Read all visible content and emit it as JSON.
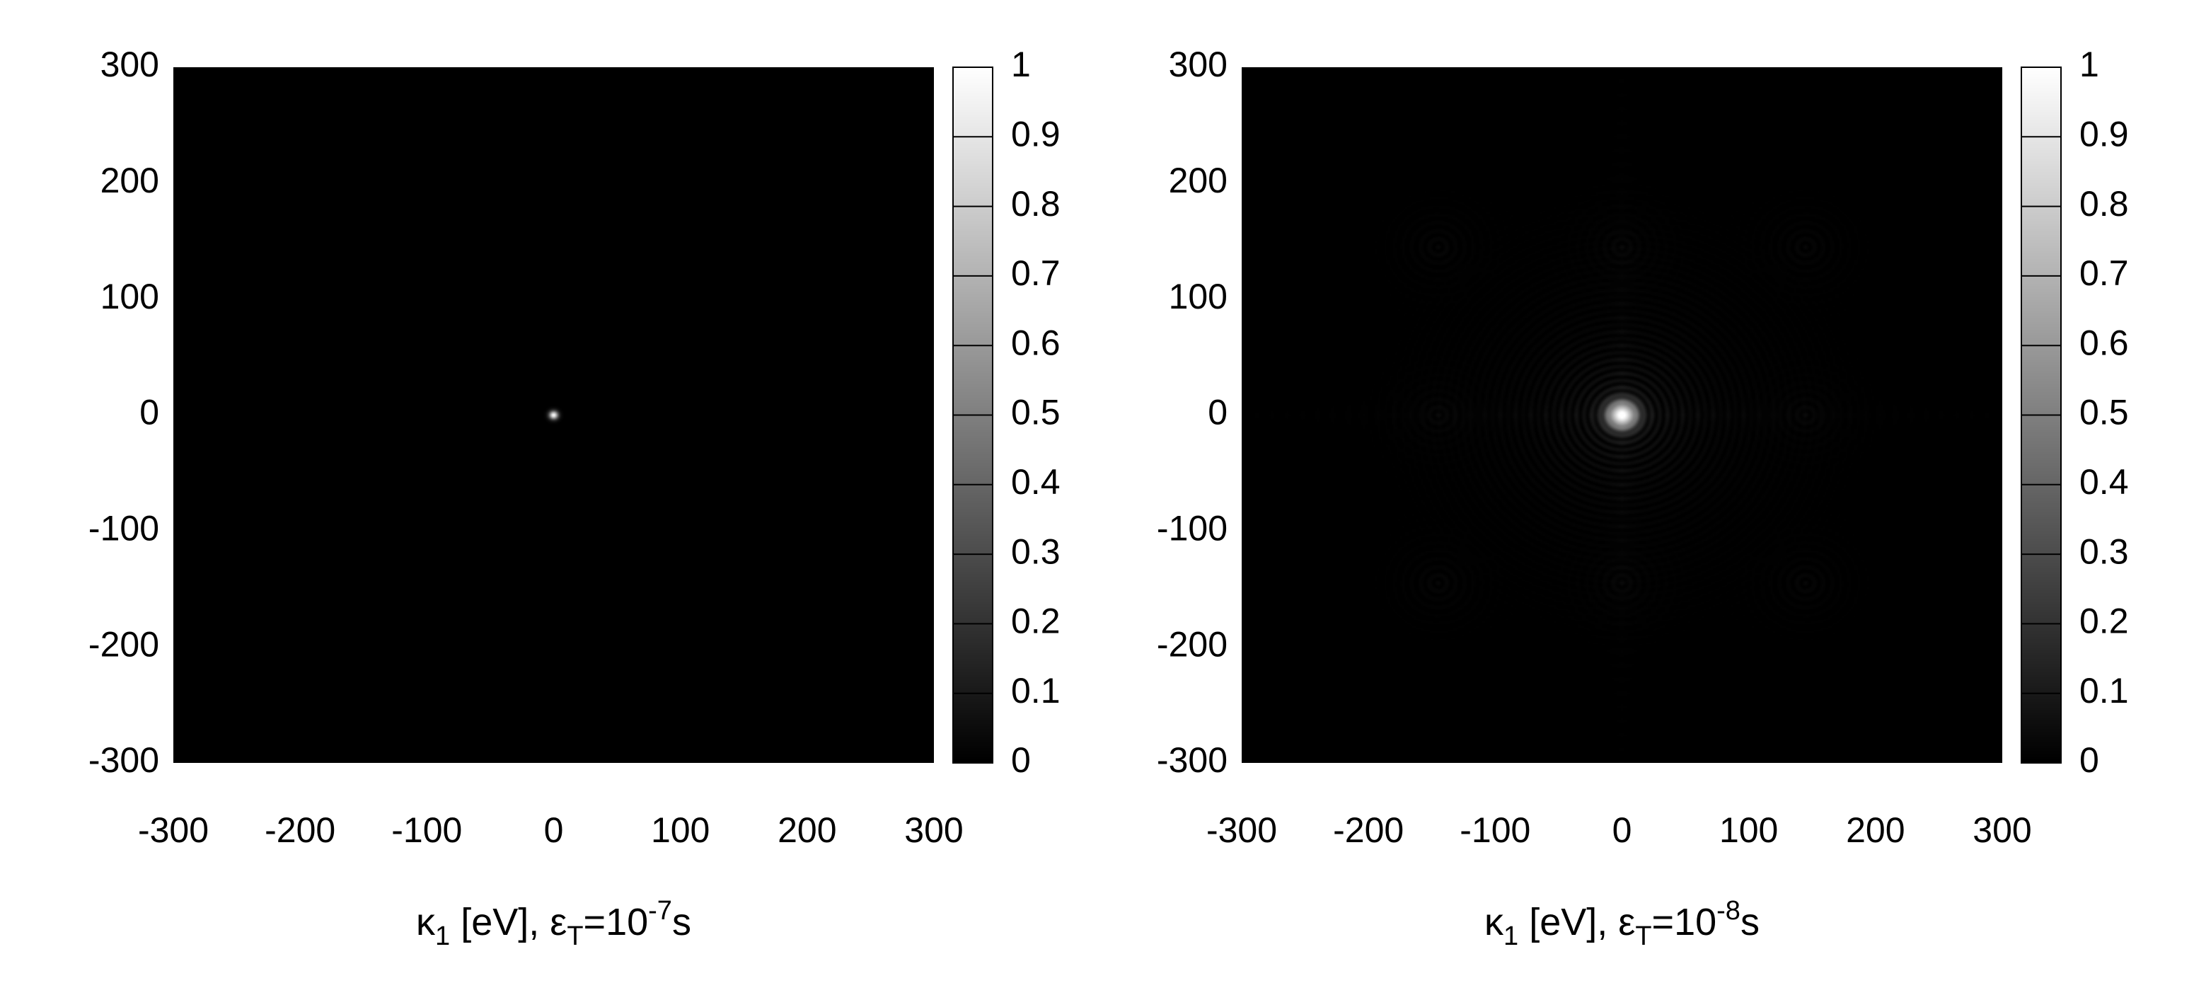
{
  "chart_data": [
    {
      "type": "heatmap",
      "title": "",
      "xlabel": {
        "parts": [
          {
            "text": "κ",
            "style": "normal"
          },
          {
            "text": "1",
            "style": "sub"
          },
          {
            "text": " [eV], ε",
            "style": "normal"
          },
          {
            "text": "T",
            "style": "sub"
          },
          {
            "text": "=10",
            "style": "normal"
          },
          {
            "text": "-7",
            "style": "sup"
          },
          {
            "text": "s",
            "style": "normal"
          }
        ]
      },
      "ylabel": "",
      "xlim": [
        -300,
        300
      ],
      "ylim": [
        -300,
        300
      ],
      "xticks": [
        "-300",
        "-200",
        "-100",
        "0",
        "100",
        "200",
        "300"
      ],
      "yticks": [
        "300",
        "200",
        "100",
        "0",
        "-100",
        "-200",
        "-300"
      ],
      "colorbar": {
        "min": 0,
        "max": 1,
        "colormap": "grayscale",
        "ticks": [
          "1",
          "0.9",
          "0.8",
          "0.7",
          "0.6",
          "0.5",
          "0.4",
          "0.3",
          "0.2",
          "0.1",
          "0"
        ]
      },
      "features": {
        "peak_center": [
          0,
          0
        ],
        "peak_value": 1,
        "peak_width": 2.5,
        "ring_spacing": 0,
        "ring_amplitude": 0,
        "satellites": []
      },
      "background_color": "#000000"
    },
    {
      "type": "heatmap",
      "title": "",
      "xlabel": {
        "parts": [
          {
            "text": "κ",
            "style": "normal"
          },
          {
            "text": "1",
            "style": "sub"
          },
          {
            "text": " [eV], ε",
            "style": "normal"
          },
          {
            "text": "T",
            "style": "sub"
          },
          {
            "text": "=10",
            "style": "normal"
          },
          {
            "text": "-8",
            "style": "sup"
          },
          {
            "text": "s",
            "style": "normal"
          }
        ]
      },
      "ylabel": "",
      "xlim": [
        -300,
        300
      ],
      "ylim": [
        -300,
        300
      ],
      "xticks": [
        "-300",
        "-200",
        "-100",
        "0",
        "100",
        "200",
        "300"
      ],
      "yticks": [
        "300",
        "200",
        "100",
        "0",
        "-100",
        "-200",
        "-300"
      ],
      "colorbar": {
        "min": 0,
        "max": 1,
        "colormap": "grayscale",
        "ticks": [
          "1",
          "0.9",
          "0.8",
          "0.7",
          "0.6",
          "0.5",
          "0.4",
          "0.3",
          "0.2",
          "0.1",
          "0"
        ]
      },
      "features": {
        "peak_center": [
          0,
          0
        ],
        "peak_value": 1,
        "peak_width": 8,
        "ring_spacing": 6,
        "ring_amplitude": 0.12,
        "satellites": [
          {
            "x": -145,
            "y": 0
          },
          {
            "x": 145,
            "y": 0
          },
          {
            "x": 0,
            "y": 145
          },
          {
            "x": 0,
            "y": -145
          },
          {
            "x": -145,
            "y": 145
          },
          {
            "x": 145,
            "y": 145
          },
          {
            "x": -145,
            "y": -145
          },
          {
            "x": 145,
            "y": -145
          }
        ]
      },
      "background_color": "#000000"
    }
  ]
}
